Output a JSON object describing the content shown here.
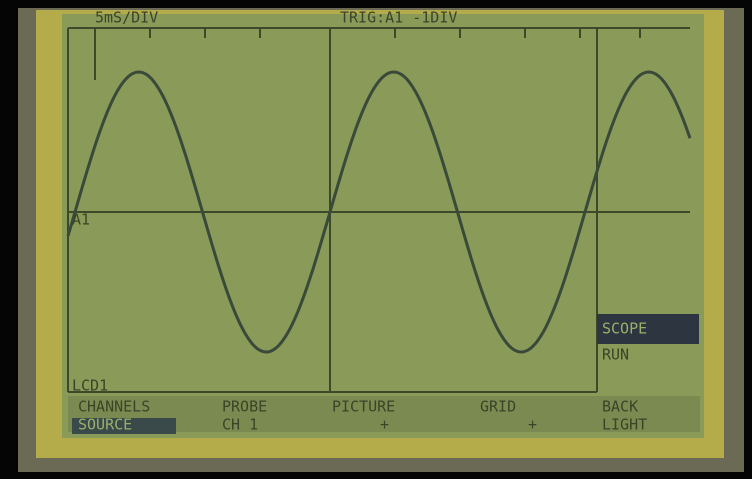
{
  "header": {
    "timebase": "5mS/DIV",
    "trigger": "TRIG:A1 -1DIV"
  },
  "screen": {
    "channel_marker": "A1",
    "display_label": "LCD1"
  },
  "side_menu": {
    "items": [
      "SCOPE",
      "RUN"
    ]
  },
  "menu": {
    "items": [
      {
        "top": "CHANNELS",
        "bottom": "SOURCE"
      },
      {
        "top": "PROBE",
        "bottom": "CH 1"
      },
      {
        "top": "PICTURE",
        "bottom": "+"
      },
      {
        "top": "GRID",
        "bottom": "+"
      },
      {
        "top": "BACK",
        "bottom": "LIGHT"
      }
    ]
  }
}
